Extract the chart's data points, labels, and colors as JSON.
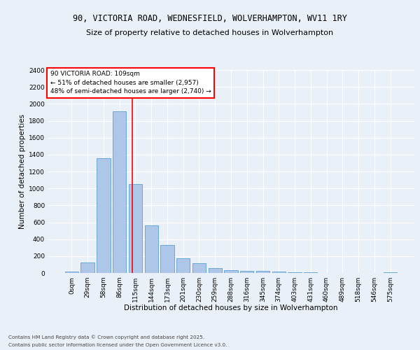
{
  "title1": "90, VICTORIA ROAD, WEDNESFIELD, WOLVERHAMPTON, WV11 1RY",
  "title2": "Size of property relative to detached houses in Wolverhampton",
  "xlabel": "Distribution of detached houses by size in Wolverhampton",
  "ylabel": "Number of detached properties",
  "footer1": "Contains HM Land Registry data © Crown copyright and database right 2025.",
  "footer2": "Contains public sector information licensed under the Open Government Licence v3.0.",
  "annotation_line1": "90 VICTORIA ROAD: 109sqm",
  "annotation_line2": "← 51% of detached houses are smaller (2,957)",
  "annotation_line3": "48% of semi-detached houses are larger (2,740) →",
  "bar_color": "#aec6e8",
  "bar_edge_color": "#5a9fd4",
  "vline_color": "red",
  "background_color": "#eaf0f8",
  "grid_color": "#ffffff",
  "categories": [
    "0sqm",
    "29sqm",
    "58sqm",
    "86sqm",
    "115sqm",
    "144sqm",
    "173sqm",
    "201sqm",
    "230sqm",
    "259sqm",
    "288sqm",
    "316sqm",
    "345sqm",
    "374sqm",
    "403sqm",
    "431sqm",
    "460sqm",
    "489sqm",
    "518sqm",
    "546sqm",
    "575sqm"
  ],
  "values": [
    15,
    125,
    1360,
    1910,
    1055,
    560,
    335,
    170,
    115,
    60,
    35,
    27,
    22,
    18,
    10,
    5,
    3,
    2,
    2,
    1,
    10
  ],
  "ylim": [
    0,
    2400
  ],
  "yticks": [
    0,
    200,
    400,
    600,
    800,
    1000,
    1200,
    1400,
    1600,
    1800,
    2000,
    2200,
    2400
  ],
  "vline_x": 3.8,
  "title1_fontsize": 8.5,
  "title2_fontsize": 8.0,
  "xlabel_fontsize": 7.5,
  "ylabel_fontsize": 7.5,
  "tick_fontsize": 6.5,
  "annot_fontsize": 6.5,
  "footer_fontsize": 5.2
}
